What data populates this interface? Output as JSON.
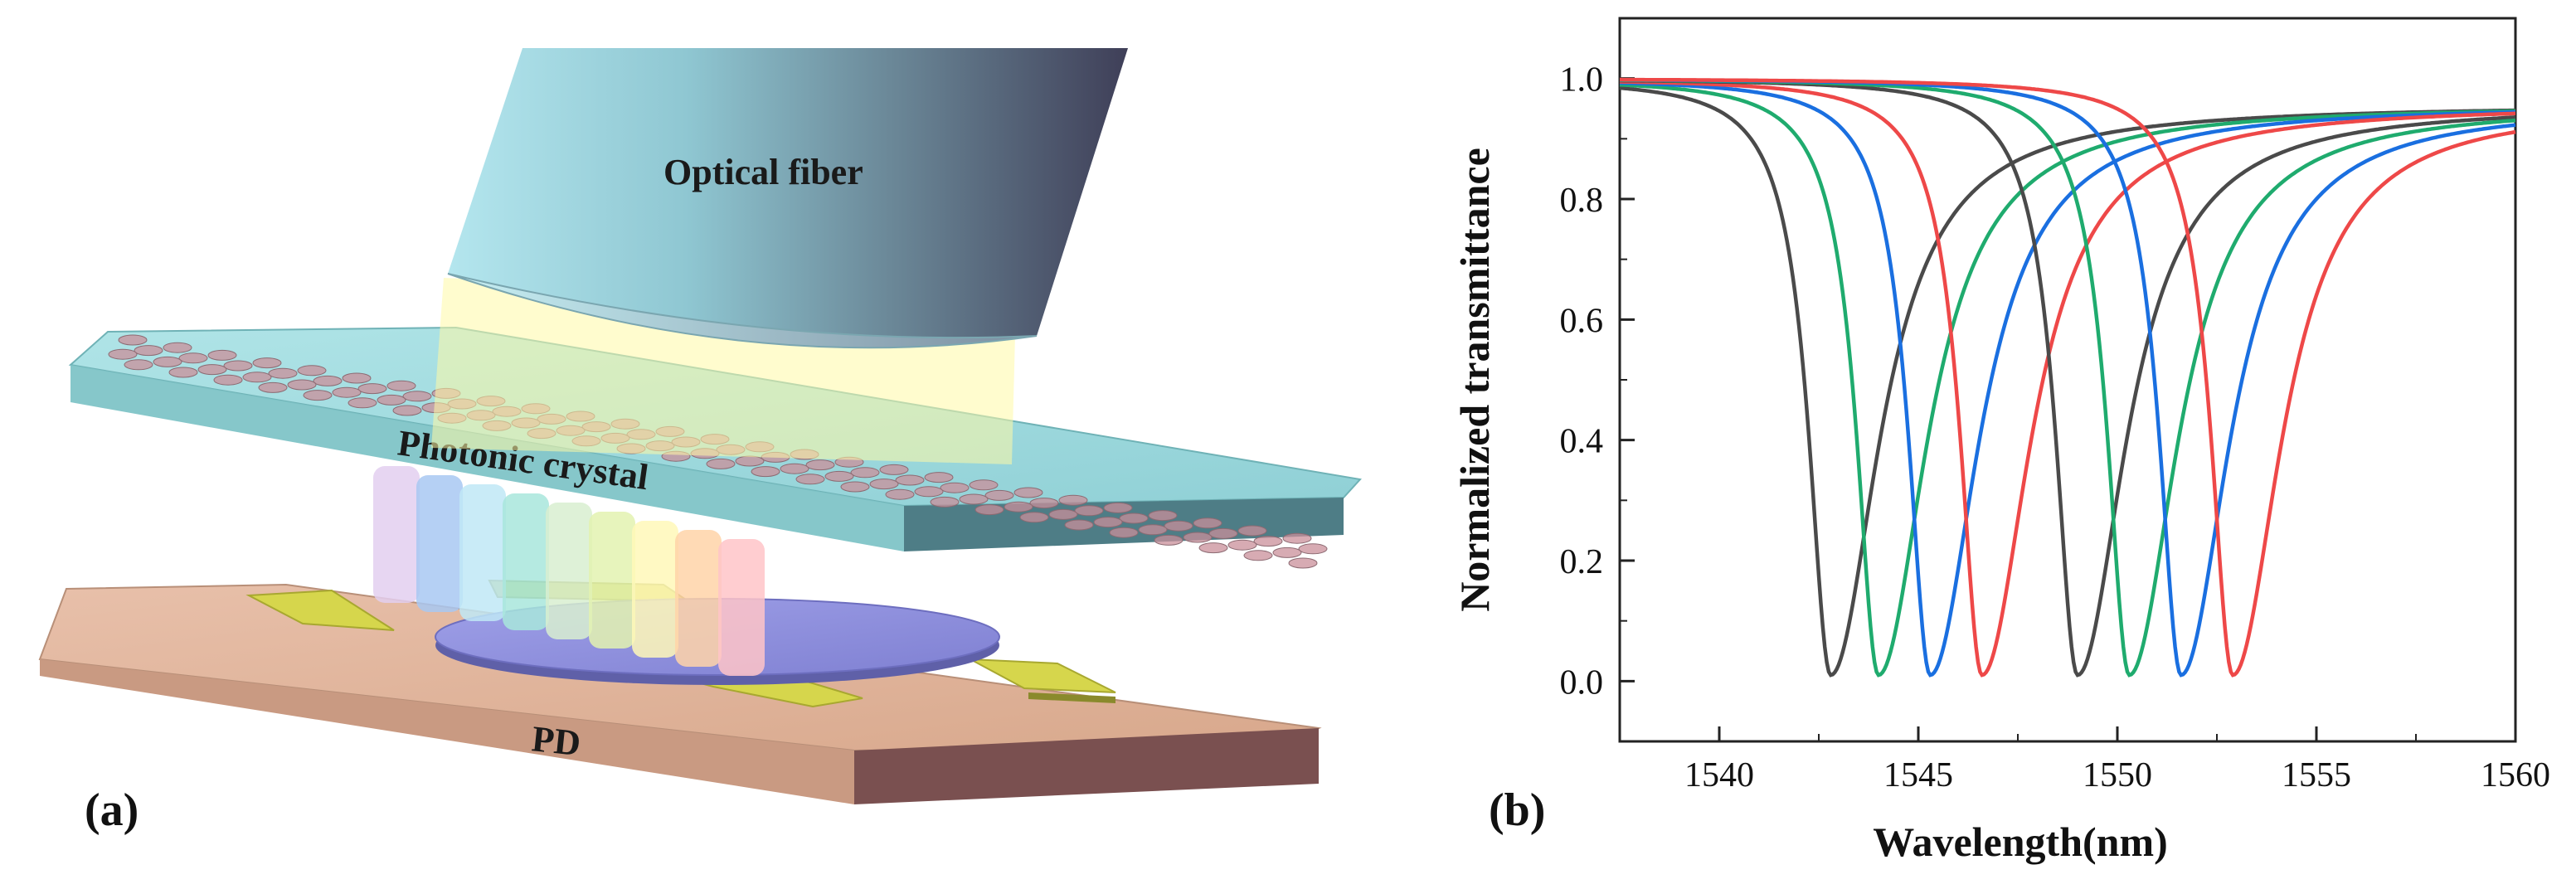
{
  "panel_a": {
    "label": "(a)",
    "fiber_label": "Optical fiber",
    "crystal_label": "Photonic crystal",
    "pd_label": "PD",
    "colors": {
      "fiber_light": "#a7dce6",
      "fiber_dark": "#44445c",
      "slab": "#8ed3d6",
      "pd_top": "#e2b49a",
      "pd_side": "#7a5050",
      "disk": "#8f90dc",
      "electrode": "#d2d24a",
      "beam": "#fff7a0",
      "hole": "#c98f9a"
    },
    "spectrum_blocks": [
      "#e3cff0",
      "#a8c8f2",
      "#bfe8f6",
      "#a8e6dc",
      "#d8eed0",
      "#e3f2b0",
      "#fff8b8",
      "#ffd3a8",
      "#ffc4c8"
    ]
  },
  "panel_b": {
    "label": "(b)"
  },
  "chart_data": {
    "type": "line",
    "title": "",
    "xlabel": "Wavelength(nm)",
    "ylabel": "Normalized transmittance",
    "xlim": [
      1537.5,
      1560
    ],
    "ylim": [
      -0.1,
      1.1
    ],
    "xticks": [
      1540,
      1545,
      1550,
      1555,
      1560
    ],
    "yticks": [
      0.0,
      0.2,
      0.4,
      0.6,
      0.8,
      1.0
    ],
    "xtick_labels": [
      "1540",
      "1545",
      "1550",
      "1555",
      "1560"
    ],
    "ytick_labels": [
      "0.0",
      "0.2",
      "0.4",
      "0.6",
      "0.8",
      "1.0"
    ],
    "grid": false,
    "legend": "none",
    "series": [
      {
        "name": "dip1-black",
        "color": "#4a4a4a",
        "center": 1542.8,
        "min": 0.01
      },
      {
        "name": "dip1-green",
        "color": "#1fab6e",
        "center": 1544.0,
        "min": 0.01
      },
      {
        "name": "dip1-blue",
        "color": "#1a6fe0",
        "center": 1545.3,
        "min": 0.01
      },
      {
        "name": "dip1-red",
        "color": "#ee4848",
        "center": 1546.6,
        "min": 0.01
      },
      {
        "name": "dip2-black",
        "color": "#4a4a4a",
        "center": 1549.0,
        "min": 0.01
      },
      {
        "name": "dip2-green",
        "color": "#1fab6e",
        "center": 1550.3,
        "min": 0.01
      },
      {
        "name": "dip2-blue",
        "color": "#1a6fe0",
        "center": 1551.6,
        "min": 0.01
      },
      {
        "name": "dip2-red",
        "color": "#ee4848",
        "center": 1552.9,
        "min": 0.01
      }
    ]
  }
}
